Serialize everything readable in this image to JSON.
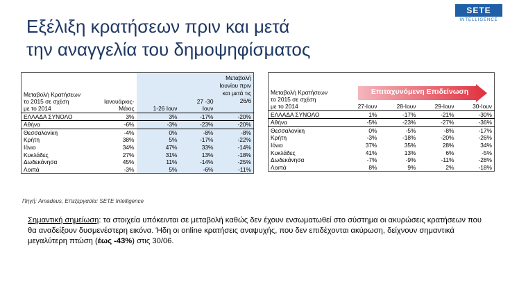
{
  "title_line1": "Εξέλιξη κρατήσεων πριν και μετά",
  "title_line2": "την αναγγελία του δημοψηφίσματος",
  "logo": {
    "text": "SETE",
    "sub": "INTELLIGENCE"
  },
  "table1": {
    "header": {
      "label_l1": "Μεταβολή Κρατήσεων",
      "label_l2": "το 2015 σε σχέση",
      "label_l3": "με το 2014",
      "col1_l1": "Ιανουάριος-",
      "col1_l2": "Μάιος",
      "col2": "1-26 Ιουν",
      "col3_l1": "27 -30",
      "col3_l2": "Ιουν",
      "col4": "Μεταβολή Ιουνίου πριν και μετά τις 26/6"
    },
    "rows": [
      {
        "name": "ΕΛΛΑΔΑ ΣΥΝΟΛΟ",
        "c1": "3%",
        "c2": "3%",
        "c3": "-17%",
        "c4": "-20%"
      },
      {
        "name": "Αθήνα",
        "c1": "-6%",
        "c2": "-3%",
        "c3": "-23%",
        "c4": "-20%"
      },
      {
        "name": "Θεσσαλονίκη",
        "c1": "-4%",
        "c2": "0%",
        "c3": "-8%",
        "c4": "-8%"
      },
      {
        "name": "Κρήτη",
        "c1": "38%",
        "c2": "5%",
        "c3": "-17%",
        "c4": "-22%"
      },
      {
        "name": "Ιόνιο",
        "c1": "34%",
        "c2": "47%",
        "c3": "33%",
        "c4": "-14%"
      },
      {
        "name": "Κυκλάδες",
        "c1": "27%",
        "c2": "31%",
        "c3": "13%",
        "c4": "-18%"
      },
      {
        "name": "Δωδεκάνησα",
        "c1": "45%",
        "c2": "11%",
        "c3": "-14%",
        "c4": "-25%"
      },
      {
        "name": "Λοιπά",
        "c1": "-3%",
        "c2": "5%",
        "c3": "-6%",
        "c4": "-11%"
      }
    ]
  },
  "table2": {
    "arrow_label": "Επιταχυνόμενη Επιδείνωση",
    "header": {
      "label_l1": "Μεταβολή Κρατήσεων",
      "label_l2": "το 2015 σε σχέση",
      "label_l3": "με το 2014",
      "d1": "27-Ιουν",
      "d2": "28-Ιουν",
      "d3": "29-Ιουν",
      "d4": "30-Ιουν"
    },
    "rows": [
      {
        "name": "ΕΛΛΑΔΑ ΣΥΝΟΛΟ",
        "c1": "1%",
        "c2": "-17%",
        "c3": "-21%",
        "c4": "-30%"
      },
      {
        "name": "Αθήνα",
        "c1": "-5%",
        "c2": "-23%",
        "c3": "-27%",
        "c4": "-36%"
      },
      {
        "name": "Θεσσαλονίκη",
        "c1": "0%",
        "c2": "-5%",
        "c3": "-8%",
        "c4": "-17%"
      },
      {
        "name": "Κρήτη",
        "c1": "-3%",
        "c2": "-18%",
        "c3": "-20%",
        "c4": "-26%"
      },
      {
        "name": "Ιόνιο",
        "c1": "37%",
        "c2": "35%",
        "c3": "28%",
        "c4": "34%"
      },
      {
        "name": "Κυκλάδες",
        "c1": "41%",
        "c2": "13%",
        "c3": "6%",
        "c4": "-5%"
      },
      {
        "name": "Δωδεκάνησα",
        "c1": "-7%",
        "c2": "-9%",
        "c3": "-11%",
        "c4": "-28%"
      },
      {
        "name": "Λοιπά",
        "c1": "8%",
        "c2": "9%",
        "c3": "2%",
        "c4": "-18%"
      }
    ]
  },
  "source": "Πηγή: Amadeus, Επεξεργασία: SETE Intelligence",
  "note": {
    "label": "Σημαντική σημείωση",
    "text1": ": τα στοιχεία υπόκεινται σε μεταβολή καθώς δεν έχουν ενσωματωθεί στο σύστημα οι ακυρώσεις κρατήσεων που θα αναδείξουν δυσμενέστερη εικόνα. Ήδη οι online κρατήσεις αναψυχής, που δεν επιδέχονται ακύρωση, δείχνουν σημαντικά μεγαλύτερη πτώση (",
    "bold": "έως -43%",
    "text2": ") στις 30/06."
  },
  "colors": {
    "title": "#1f3864",
    "highlight": "#dce9f6",
    "arrow_start": "#f4b6bd",
    "arrow_end": "#e0303e",
    "logo": "#1f5fa6"
  }
}
